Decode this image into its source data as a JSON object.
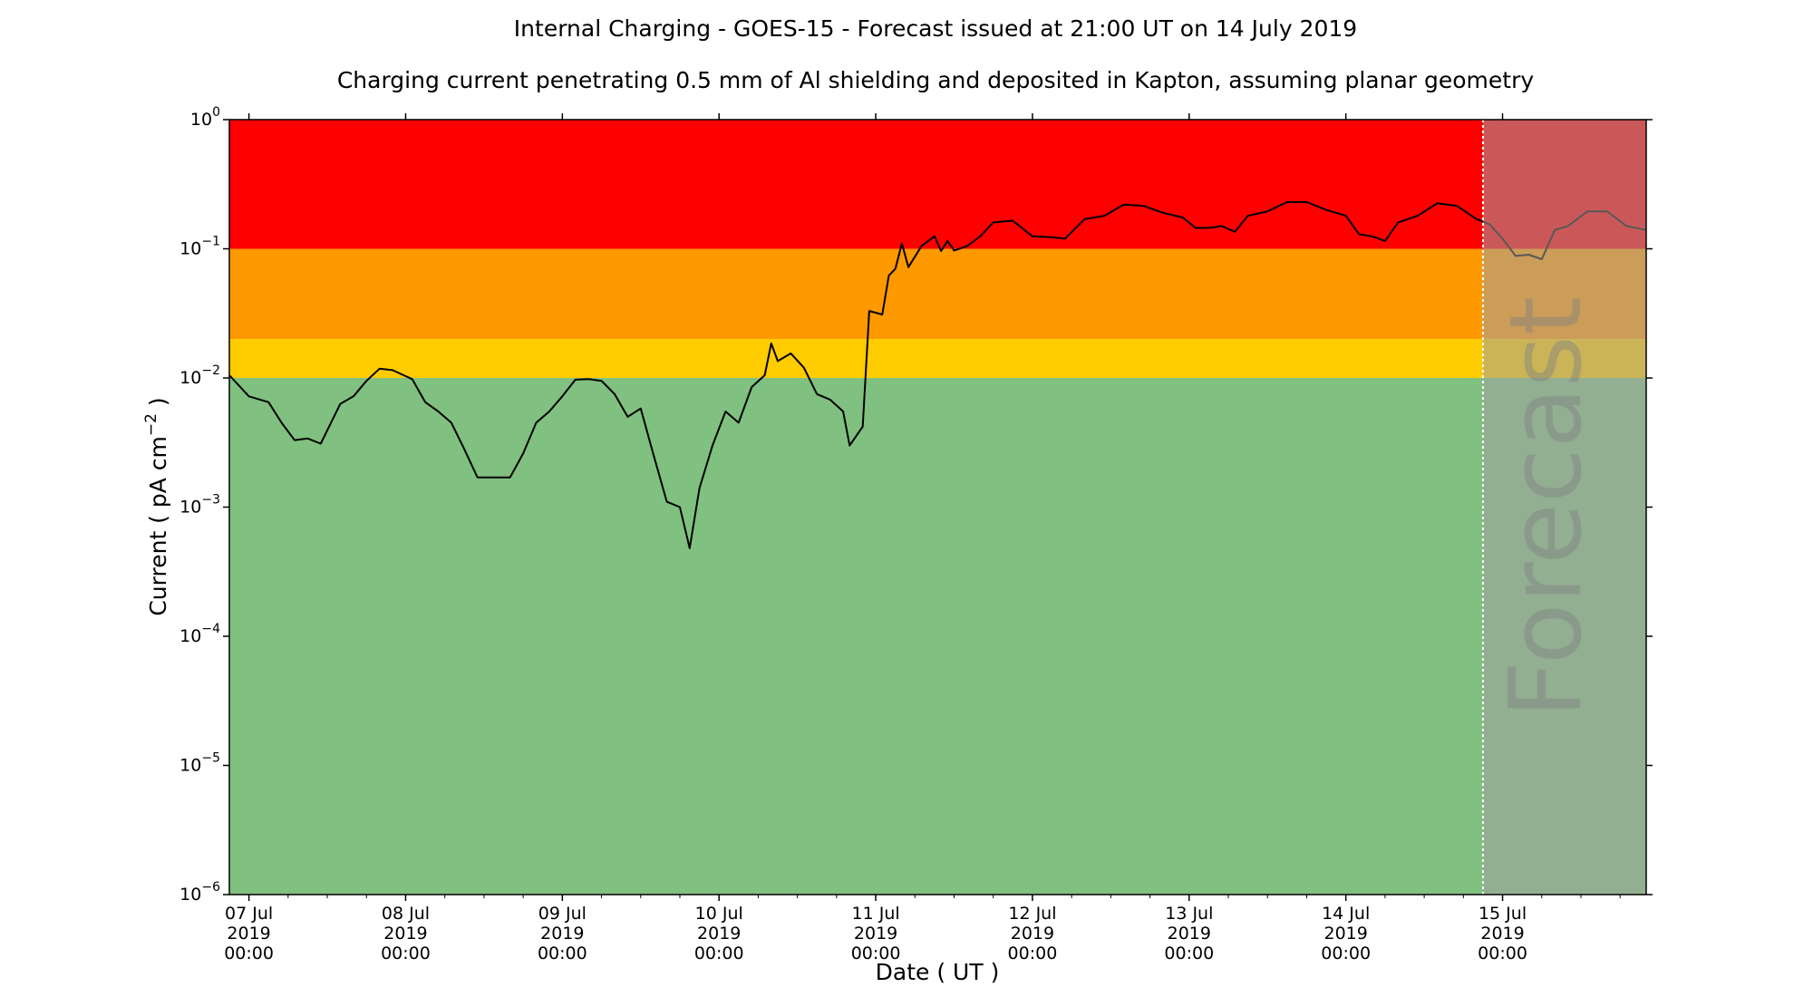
{
  "chart_data": {
    "type": "line",
    "title": "Internal Charging - GOES-15 - Forecast issued at 21:00 UT on 14 July 2019",
    "subtitle": "Charging current penetrating 0.5 mm of Al shielding and deposited in Kapton, assuming planar geometry",
    "xlabel": "Date ( UT )",
    "ylabel": "Current ( pA cm^-2 )",
    "yscale": "log",
    "ylim": [
      1e-06,
      1
    ],
    "xlim": [
      "2019-07-06T21:00",
      "2019-07-15T22:00"
    ],
    "x_ticks": [
      {
        "date": "2019-07-07T00:00",
        "lines": [
          "07 Jul",
          "2019",
          "00:00"
        ]
      },
      {
        "date": "2019-07-08T00:00",
        "lines": [
          "08 Jul",
          "2019",
          "00:00"
        ]
      },
      {
        "date": "2019-07-09T00:00",
        "lines": [
          "09 Jul",
          "2019",
          "00:00"
        ]
      },
      {
        "date": "2019-07-10T00:00",
        "lines": [
          "10 Jul",
          "2019",
          "00:00"
        ]
      },
      {
        "date": "2019-07-11T00:00",
        "lines": [
          "11 Jul",
          "2019",
          "00:00"
        ]
      },
      {
        "date": "2019-07-12T00:00",
        "lines": [
          "12 Jul",
          "2019",
          "00:00"
        ]
      },
      {
        "date": "2019-07-13T00:00",
        "lines": [
          "13 Jul",
          "2019",
          "00:00"
        ]
      },
      {
        "date": "2019-07-14T00:00",
        "lines": [
          "14 Jul",
          "2019",
          "00:00"
        ]
      },
      {
        "date": "2019-07-15T00:00",
        "lines": [
          "15 Jul",
          "2019",
          "00:00"
        ]
      }
    ],
    "y_ticks": [
      {
        "value": 1,
        "base": "10",
        "exp": "0"
      },
      {
        "value": 0.1,
        "base": "10",
        "exp": "−1"
      },
      {
        "value": 0.01,
        "base": "10",
        "exp": "−2"
      },
      {
        "value": 0.001,
        "base": "10",
        "exp": "−3"
      },
      {
        "value": 0.0001,
        "base": "10",
        "exp": "−4"
      },
      {
        "value": 1e-05,
        "base": "10",
        "exp": "−5"
      },
      {
        "value": 1e-06,
        "base": "10",
        "exp": "−6"
      }
    ],
    "bands": [
      {
        "from": 0.1,
        "to": 1,
        "color": "#ff0000"
      },
      {
        "from": 0.02,
        "to": 0.1,
        "color": "#ff9900"
      },
      {
        "from": 0.01,
        "to": 0.02,
        "color": "#ffcc00"
      },
      {
        "from": 1e-06,
        "to": 0.01,
        "color": "#80c080"
      }
    ],
    "forecast": {
      "label": "Forecast",
      "start": "2019-07-14T21:00",
      "overlay_color": "#a0a0a0"
    },
    "series": [
      {
        "color": "#000000",
        "points": [
          [
            "2019-07-06T21:00",
            0.0105
          ],
          [
            "2019-07-07T00:00",
            0.0072
          ],
          [
            "2019-07-07T03:00",
            0.0065
          ],
          [
            "2019-07-07T05:00",
            0.0045
          ],
          [
            "2019-07-07T07:00",
            0.0033
          ],
          [
            "2019-07-07T09:00",
            0.0034
          ],
          [
            "2019-07-07T11:00",
            0.0031
          ],
          [
            "2019-07-07T14:00",
            0.0063
          ],
          [
            "2019-07-07T16:00",
            0.0072
          ],
          [
            "2019-07-07T18:00",
            0.0095
          ],
          [
            "2019-07-07T20:00",
            0.0118
          ],
          [
            "2019-07-07T22:00",
            0.0115
          ],
          [
            "2019-07-08T01:00",
            0.0098
          ],
          [
            "2019-07-08T03:00",
            0.0065
          ],
          [
            "2019-07-08T05:00",
            0.0055
          ],
          [
            "2019-07-08T07:00",
            0.0045
          ],
          [
            "2019-07-08T09:00",
            0.0028
          ],
          [
            "2019-07-08T11:00",
            0.0017
          ],
          [
            "2019-07-08T13:00",
            0.0017
          ],
          [
            "2019-07-08T16:00",
            0.0017
          ],
          [
            "2019-07-08T18:00",
            0.0026
          ],
          [
            "2019-07-08T20:00",
            0.0045
          ],
          [
            "2019-07-08T22:00",
            0.0055
          ],
          [
            "2019-07-09T00:00",
            0.0072
          ],
          [
            "2019-07-09T02:00",
            0.0097
          ],
          [
            "2019-07-09T04:00",
            0.0098
          ],
          [
            "2019-07-09T06:00",
            0.0095
          ],
          [
            "2019-07-09T08:00",
            0.0075
          ],
          [
            "2019-07-09T10:00",
            0.005
          ],
          [
            "2019-07-09T12:00",
            0.0058
          ],
          [
            "2019-07-09T14:00",
            0.0025
          ],
          [
            "2019-07-09T16:00",
            0.0011
          ],
          [
            "2019-07-09T18:00",
            0.001
          ],
          [
            "2019-07-09T19:30",
            0.00048
          ],
          [
            "2019-07-09T21:00",
            0.0014
          ],
          [
            "2019-07-09T23:00",
            0.003
          ],
          [
            "2019-07-10T01:00",
            0.0055
          ],
          [
            "2019-07-10T03:00",
            0.0045
          ],
          [
            "2019-07-10T05:00",
            0.0085
          ],
          [
            "2019-07-10T07:00",
            0.0105
          ],
          [
            "2019-07-10T08:00",
            0.0185
          ],
          [
            "2019-07-10T09:00",
            0.0135
          ],
          [
            "2019-07-10T11:00",
            0.0155
          ],
          [
            "2019-07-10T13:00",
            0.012
          ],
          [
            "2019-07-10T15:00",
            0.0075
          ],
          [
            "2019-07-10T17:00",
            0.0068
          ],
          [
            "2019-07-10T19:00",
            0.0055
          ],
          [
            "2019-07-10T20:00",
            0.003
          ],
          [
            "2019-07-10T22:00",
            0.0042
          ],
          [
            "2019-07-10T23:00",
            0.033
          ],
          [
            "2019-07-11T01:00",
            0.031
          ],
          [
            "2019-07-11T02:00",
            0.062
          ],
          [
            "2019-07-11T03:00",
            0.07
          ],
          [
            "2019-07-11T04:00",
            0.11
          ],
          [
            "2019-07-11T05:00",
            0.072
          ],
          [
            "2019-07-11T07:00",
            0.105
          ],
          [
            "2019-07-11T09:00",
            0.125
          ],
          [
            "2019-07-11T10:00",
            0.096
          ],
          [
            "2019-07-11T11:00",
            0.115
          ],
          [
            "2019-07-11T12:00",
            0.097
          ],
          [
            "2019-07-11T14:00",
            0.105
          ],
          [
            "2019-07-11T16:00",
            0.125
          ],
          [
            "2019-07-11T18:00",
            0.16
          ],
          [
            "2019-07-11T21:00",
            0.165
          ],
          [
            "2019-07-12T00:00",
            0.125
          ],
          [
            "2019-07-12T03:00",
            0.123
          ],
          [
            "2019-07-12T05:00",
            0.12
          ],
          [
            "2019-07-12T08:00",
            0.17
          ],
          [
            "2019-07-12T11:00",
            0.18
          ],
          [
            "2019-07-12T14:00",
            0.22
          ],
          [
            "2019-07-12T17:00",
            0.215
          ],
          [
            "2019-07-12T20:00",
            0.19
          ],
          [
            "2019-07-12T23:00",
            0.175
          ],
          [
            "2019-07-13T01:00",
            0.145
          ],
          [
            "2019-07-13T03:00",
            0.145
          ],
          [
            "2019-07-13T05:00",
            0.15
          ],
          [
            "2019-07-13T07:00",
            0.135
          ],
          [
            "2019-07-13T09:00",
            0.18
          ],
          [
            "2019-07-13T12:00",
            0.195
          ],
          [
            "2019-07-13T15:00",
            0.23
          ],
          [
            "2019-07-13T18:00",
            0.23
          ],
          [
            "2019-07-13T21:00",
            0.2
          ],
          [
            "2019-07-14T00:00",
            0.18
          ],
          [
            "2019-07-14T02:00",
            0.13
          ],
          [
            "2019-07-14T04:00",
            0.125
          ],
          [
            "2019-07-14T06:00",
            0.115
          ],
          [
            "2019-07-14T08:00",
            0.16
          ],
          [
            "2019-07-14T11:00",
            0.18
          ],
          [
            "2019-07-14T14:00",
            0.225
          ],
          [
            "2019-07-14T17:00",
            0.215
          ],
          [
            "2019-07-14T20:00",
            0.17
          ],
          [
            "2019-07-14T22:00",
            0.155
          ],
          [
            "2019-07-15T00:00",
            0.12
          ],
          [
            "2019-07-15T02:00",
            0.088
          ],
          [
            "2019-07-15T04:00",
            0.09
          ],
          [
            "2019-07-15T06:00",
            0.083
          ],
          [
            "2019-07-15T08:00",
            0.14
          ],
          [
            "2019-07-15T10:00",
            0.15
          ],
          [
            "2019-07-15T13:00",
            0.195
          ],
          [
            "2019-07-15T16:00",
            0.195
          ],
          [
            "2019-07-15T19:00",
            0.15
          ],
          [
            "2019-07-15T22:00",
            0.14
          ]
        ]
      }
    ]
  }
}
